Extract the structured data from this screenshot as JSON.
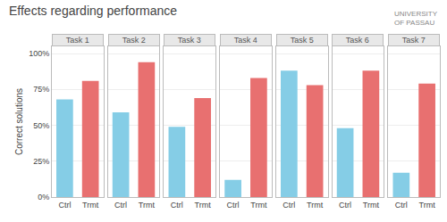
{
  "title": "Effects regarding performance",
  "annotations": [
    {
      "text": "UNIVERSITY\nOF PASSAU"
    }
  ],
  "chart_data": [
    {
      "type": "bar",
      "title": "Task 1",
      "ylabel": "Correct solutions",
      "categories": [
        "Ctrl",
        "Trmt"
      ],
      "values": [
        0.68,
        0.81
      ],
      "colors": [
        "#85CDE6",
        "#E87070"
      ],
      "ylim": [
        0,
        1.05
      ],
      "yticks": [
        {
          "value": 0.0,
          "label": "0%"
        },
        {
          "value": 0.25,
          "label": "25%"
        },
        {
          "value": 0.5,
          "label": "50%"
        },
        {
          "value": 0.75,
          "label": "75%"
        },
        {
          "value": 1.0,
          "label": "100%"
        }
      ],
      "grid": true
    },
    {
      "type": "bar",
      "title": "Task 2",
      "categories": [
        "Ctrl",
        "Trmt"
      ],
      "values": [
        0.59,
        0.94
      ],
      "colors": [
        "#85CDE6",
        "#E87070"
      ],
      "ylim": [
        0,
        1.05
      ],
      "yticks": [
        {
          "value": 0.0,
          "label": "0%"
        },
        {
          "value": 0.25,
          "label": "25%"
        },
        {
          "value": 0.5,
          "label": "50%"
        },
        {
          "value": 0.75,
          "label": "75%"
        },
        {
          "value": 1.0,
          "label": "100%"
        }
      ],
      "grid": true,
      "tick_labels": "x"
    },
    {
      "type": "bar",
      "title": "Task 3",
      "categories": [
        "Ctrl",
        "Trmt"
      ],
      "values": [
        0.49,
        0.69
      ],
      "colors": [
        "#85CDE6",
        "#E87070"
      ],
      "ylim": [
        0,
        1.05
      ],
      "yticks": [
        {
          "value": 0.0,
          "label": "0%"
        },
        {
          "value": 0.25,
          "label": "25%"
        },
        {
          "value": 0.5,
          "label": "50%"
        },
        {
          "value": 0.75,
          "label": "75%"
        },
        {
          "value": 1.0,
          "label": "100%"
        }
      ],
      "grid": true,
      "tick_labels": "x"
    },
    {
      "type": "bar",
      "title": "Task 4",
      "categories": [
        "Ctrl",
        "Trmt"
      ],
      "values": [
        0.12,
        0.83
      ],
      "colors": [
        "#85CDE6",
        "#E87070"
      ],
      "ylim": [
        0,
        1.05
      ],
      "yticks": [
        {
          "value": 0.0,
          "label": "0%"
        },
        {
          "value": 0.25,
          "label": "25%"
        },
        {
          "value": 0.5,
          "label": "50%"
        },
        {
          "value": 0.75,
          "label": "75%"
        },
        {
          "value": 1.0,
          "label": "100%"
        }
      ],
      "grid": true,
      "tick_labels": "x"
    },
    {
      "type": "bar",
      "title": "Task 5",
      "categories": [
        "Ctrl",
        "Trmt"
      ],
      "values": [
        0.88,
        0.78
      ],
      "colors": [
        "#85CDE6",
        "#E87070"
      ],
      "ylim": [
        0,
        1.05
      ],
      "yticks": [
        {
          "value": 0.0,
          "label": "0%"
        },
        {
          "value": 0.25,
          "label": "25%"
        },
        {
          "value": 0.5,
          "label": "50%"
        },
        {
          "value": 0.75,
          "label": "75%"
        },
        {
          "value": 1.0,
          "label": "100%"
        }
      ],
      "grid": true,
      "tick_labels": "x"
    },
    {
      "type": "bar",
      "title": "Task 6",
      "categories": [
        "Ctrl",
        "Trmt"
      ],
      "values": [
        0.48,
        0.88
      ],
      "colors": [
        "#85CDE6",
        "#E87070"
      ],
      "ylim": [
        0,
        1.05
      ],
      "yticks": [
        {
          "value": 0.0,
          "label": "0%"
        },
        {
          "value": 0.25,
          "label": "25%"
        },
        {
          "value": 0.5,
          "label": "50%"
        },
        {
          "value": 0.75,
          "label": "75%"
        },
        {
          "value": 1.0,
          "label": "100%"
        }
      ],
      "grid": true,
      "tick_labels": "x"
    },
    {
      "type": "bar",
      "title": "Task 7",
      "categories": [
        "Ctrl",
        "Trmt"
      ],
      "values": [
        0.17,
        0.79
      ],
      "colors": [
        "#85CDE6",
        "#E87070"
      ],
      "ylim": [
        0,
        1.05
      ],
      "yticks": [
        {
          "value": 0.0,
          "label": "0%"
        },
        {
          "value": 0.25,
          "label": "25%"
        },
        {
          "value": 0.5,
          "label": "50%"
        },
        {
          "value": 0.75,
          "label": "75%"
        },
        {
          "value": 1.0,
          "label": "100%"
        }
      ],
      "grid": true,
      "tick_labels": "x"
    }
  ]
}
